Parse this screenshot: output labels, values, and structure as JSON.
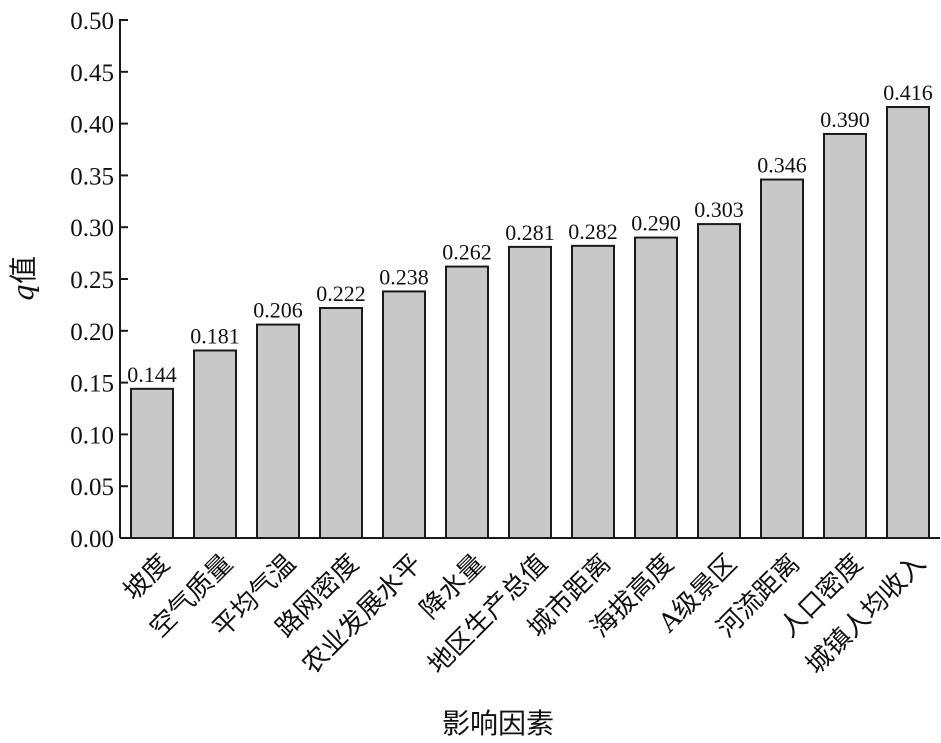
{
  "chart_data": {
    "type": "bar",
    "xlabel": "影响因素",
    "ylabel_var": "q",
    "ylabel_suffix": "值",
    "ylim": [
      0,
      0.5
    ],
    "yticks": [
      "0.00",
      "0.05",
      "0.10",
      "0.15",
      "0.20",
      "0.25",
      "0.30",
      "0.35",
      "0.40",
      "0.45",
      "0.50"
    ],
    "categories": [
      "坡度",
      "空气质量",
      "平均气温",
      "路网密度",
      "农业发展水平",
      "降水量",
      "地区生产总值",
      "城市距离",
      "海拔高度",
      "A级景区",
      "河流距离",
      "人口密度",
      "城镇人均收入"
    ],
    "values": [
      0.144,
      0.181,
      0.206,
      0.222,
      0.238,
      0.262,
      0.281,
      0.282,
      0.29,
      0.303,
      0.346,
      0.39,
      0.416
    ],
    "value_labels": [
      "0.144",
      "0.181",
      "0.206",
      "0.222",
      "0.238",
      "0.262",
      "0.281",
      "0.282",
      "0.290",
      "0.303",
      "0.346",
      "0.390",
      "0.416"
    ],
    "bar_color": "#c8c8c8",
    "grid": false,
    "legend": "none"
  }
}
